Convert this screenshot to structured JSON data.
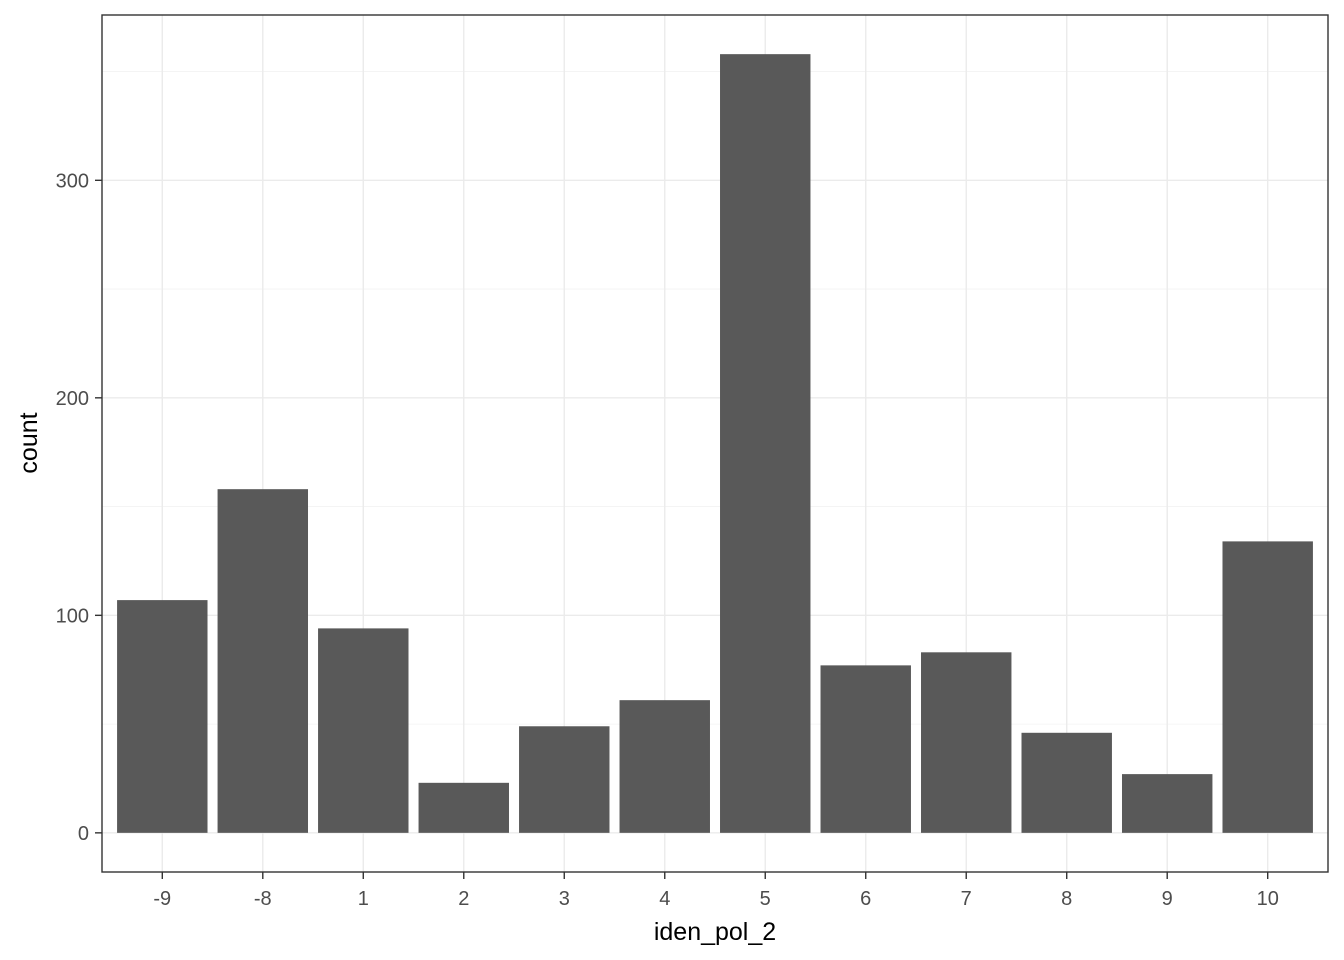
{
  "chart_data": {
    "type": "bar",
    "categories": [
      "-9",
      "-8",
      "1",
      "2",
      "3",
      "4",
      "5",
      "6",
      "7",
      "8",
      "9",
      "10"
    ],
    "values": [
      107,
      158,
      94,
      23,
      49,
      61,
      358,
      77,
      83,
      46,
      27,
      134
    ],
    "xlabel": "iden_pol_2",
    "ylabel": "count",
    "ylim": [
      -18,
      376
    ],
    "yticks": [
      0,
      100,
      200,
      300
    ],
    "grid": true,
    "bar_color": "#595959",
    "theme": "bw"
  }
}
